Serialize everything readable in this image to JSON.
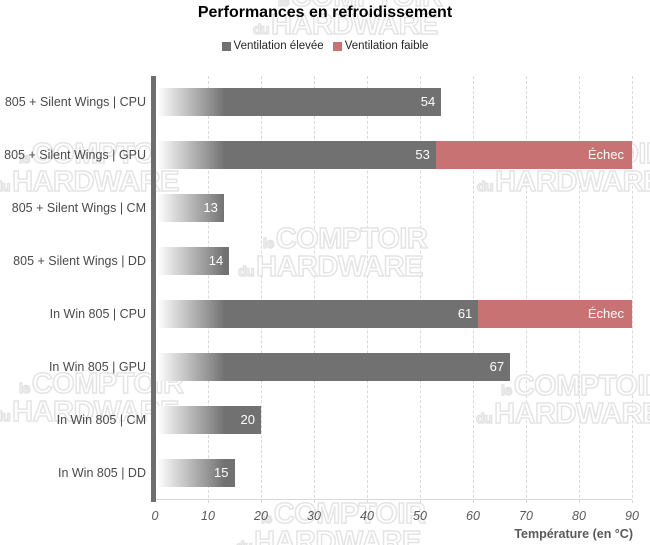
{
  "title": "Performances en refroidissement",
  "legend": {
    "items": [
      {
        "label": "Ventilation élevée",
        "color": "#717171"
      },
      {
        "label": "Ventilation faible",
        "color": "#c97273"
      }
    ]
  },
  "watermark": {
    "small1": "le",
    "big1": "COMPTOIR",
    "small2": "du",
    "big2": "HARDWARE"
  },
  "colors": {
    "bar_gray": "#717171",
    "bar_red": "#c97273",
    "axis_line": "#6e6e6e",
    "gridline": "#d9d9d9",
    "tick_text": "#595959",
    "category_text": "#4a4a4a",
    "value_text": "#ffffff"
  },
  "chart_data": {
    "type": "bar",
    "orientation": "horizontal",
    "title": "Performances en refroidissement",
    "xlabel": "Température (en °C)",
    "xlim": [
      0,
      90
    ],
    "xticks": [
      "0",
      "10",
      "20",
      "30",
      "40",
      "50",
      "60",
      "70",
      "80",
      "90"
    ],
    "grid": "vertical-dashed",
    "legend_position": "top",
    "categories": [
      "805 + Silent Wings | CPU",
      "805 + Silent Wings | GPU",
      "805 + Silent Wings | CM",
      "805 + Silent Wings | DD",
      "In Win 805 | CPU",
      "In Win 805 | GPU",
      "In Win 805 | CM",
      "In Win 805 | DD"
    ],
    "series": [
      {
        "name": "Ventilation élevée",
        "color": "#717171",
        "values": [
          54,
          53,
          13,
          14,
          61,
          67,
          20,
          15
        ]
      },
      {
        "name": "Ventilation faible",
        "color": "#c97273",
        "fail_label": "Échec",
        "fail_extends_to": 90,
        "fails": [
          false,
          true,
          false,
          false,
          true,
          false,
          false,
          false
        ]
      }
    ]
  }
}
